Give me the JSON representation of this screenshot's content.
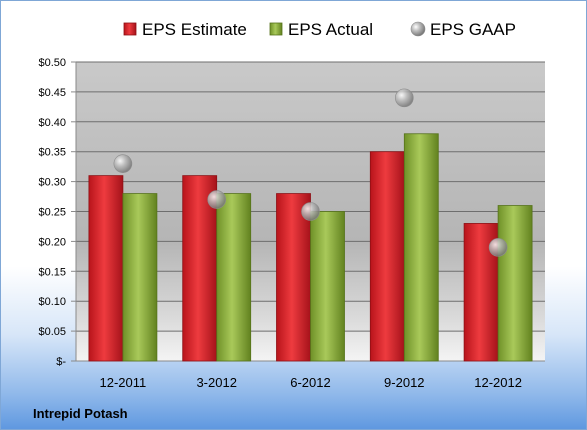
{
  "chart_data": {
    "type": "bar",
    "categories": [
      "12-2011",
      "3-2012",
      "6-2012",
      "9-2012",
      "12-2012"
    ],
    "series": [
      {
        "name": "EPS Estimate",
        "values": [
          0.31,
          0.31,
          0.28,
          0.35,
          0.23
        ],
        "color": "#d42027",
        "kind": "bar"
      },
      {
        "name": "EPS Actual",
        "values": [
          0.28,
          0.28,
          0.25,
          0.38,
          0.26
        ],
        "color": "#8fb33d",
        "kind": "bar"
      },
      {
        "name": "EPS GAAP",
        "values": [
          0.33,
          0.27,
          0.25,
          0.44,
          0.19
        ],
        "color": "#a9a9a9",
        "kind": "scatter"
      }
    ],
    "yticks": [
      {
        "value": 0.5,
        "label": "$0.50"
      },
      {
        "value": 0.45,
        "label": "$0.45"
      },
      {
        "value": 0.4,
        "label": "$0.40"
      },
      {
        "value": 0.35,
        "label": "$0.35"
      },
      {
        "value": 0.3,
        "label": "$0.30"
      },
      {
        "value": 0.25,
        "label": "$0.25"
      },
      {
        "value": 0.2,
        "label": "$0.20"
      },
      {
        "value": 0.15,
        "label": "$0.15"
      },
      {
        "value": 0.1,
        "label": "$0.10"
      },
      {
        "value": 0.05,
        "label": "$0.05"
      },
      {
        "value": 0.0,
        "label": "$-"
      }
    ],
    "ylim": [
      0,
      0.5
    ],
    "grid": true,
    "legend_position": "top"
  },
  "footer": {
    "company": "Intrepid Potash"
  }
}
